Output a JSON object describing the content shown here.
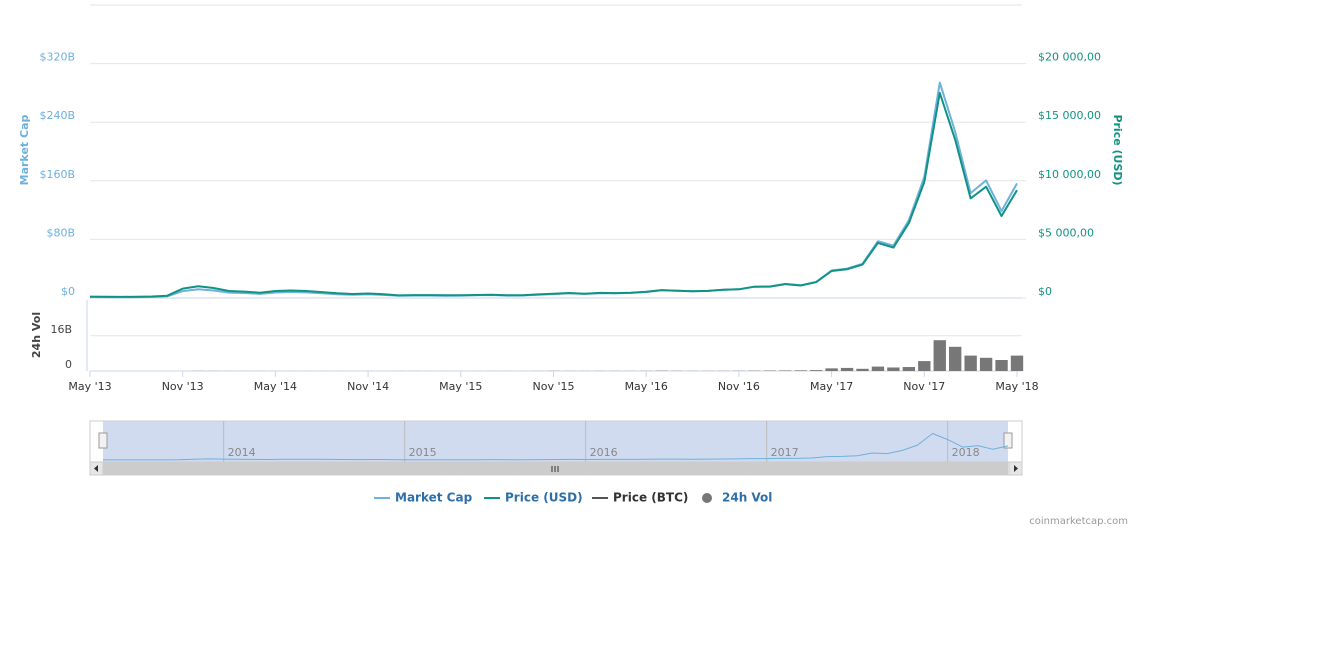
{
  "chart_data": {
    "type": "line",
    "y_title": "Market Cap",
    "y2_title": "Price (USD)",
    "vol_title": "24h Vol",
    "credit": "coinmarketcap.com",
    "x": [
      "2013-05",
      "2013-06",
      "2013-07",
      "2013-08",
      "2013-09",
      "2013-10",
      "2013-11",
      "2013-12",
      "2014-01",
      "2014-02",
      "2014-03",
      "2014-04",
      "2014-05",
      "2014-06",
      "2014-07",
      "2014-08",
      "2014-09",
      "2014-10",
      "2014-11",
      "2014-12",
      "2015-01",
      "2015-02",
      "2015-03",
      "2015-04",
      "2015-05",
      "2015-06",
      "2015-07",
      "2015-08",
      "2015-09",
      "2015-10",
      "2015-11",
      "2015-12",
      "2016-01",
      "2016-02",
      "2016-03",
      "2016-04",
      "2016-05",
      "2016-06",
      "2016-07",
      "2016-08",
      "2016-09",
      "2016-10",
      "2016-11",
      "2016-12",
      "2017-01",
      "2017-02",
      "2017-03",
      "2017-04",
      "2017-05",
      "2017-06",
      "2017-07",
      "2017-08",
      "2017-09",
      "2017-10",
      "2017-11",
      "2017-12",
      "2018-01",
      "2018-02",
      "2018-03",
      "2018-04",
      "2018-05"
    ],
    "xlim": [
      "2013-05",
      "2018-05"
    ],
    "xticks": [
      {
        "value": "2013-05",
        "label": "May '13"
      },
      {
        "value": "2013-11",
        "label": "Nov '13"
      },
      {
        "value": "2014-05",
        "label": "May '14"
      },
      {
        "value": "2014-11",
        "label": "Nov '14"
      },
      {
        "value": "2015-05",
        "label": "May '15"
      },
      {
        "value": "2015-11",
        "label": "Nov '15"
      },
      {
        "value": "2016-05",
        "label": "May '16"
      },
      {
        "value": "2016-11",
        "label": "Nov '16"
      },
      {
        "value": "2017-05",
        "label": "May '17"
      },
      {
        "value": "2017-11",
        "label": "Nov '17"
      },
      {
        "value": "2018-05",
        "label": "May '18"
      }
    ],
    "ylim": [
      0,
      400000000000
    ],
    "yticks": [
      {
        "value": 0,
        "label": "$0"
      },
      {
        "value": 80000000000,
        "label": "$80B"
      },
      {
        "value": 160000000000,
        "label": "$160B"
      },
      {
        "value": 240000000000,
        "label": "$240B"
      },
      {
        "value": 320000000000,
        "label": "$320B"
      }
    ],
    "y2lim": [
      0,
      25000
    ],
    "y2ticks": [
      {
        "value": 0,
        "label": "$0"
      },
      {
        "value": 5000,
        "label": "$5 000,00"
      },
      {
        "value": 10000,
        "label": "$10 000,00"
      },
      {
        "value": 15000,
        "label": "$15 000,00"
      },
      {
        "value": 20000,
        "label": "$20 000,00"
      }
    ],
    "vol_ylim": [
      0,
      30000000000
    ],
    "vol_yticks": [
      0,
      {
        "value": 16000000000,
        "label": "16B"
      }
    ],
    "grid": true,
    "legend": "bottom",
    "navigator_labels": [
      "2014",
      "2015",
      "2016",
      "2017",
      "2018"
    ],
    "series": [
      {
        "name": "Market Cap",
        "color": "#6db1dc",
        "axis": "y",
        "values": [
          1330000000,
          1230000000,
          1020000000,
          1250000000,
          1500000000,
          2340000000,
          9440000000,
          11900000000,
          10300000000,
          7320000000,
          6820000000,
          5630000000,
          7560000000,
          8130000000,
          7680000000,
          6450000000,
          5200000000,
          4450000000,
          5020000000,
          4260000000,
          2950000000,
          3380000000,
          3430000000,
          3170000000,
          3290000000,
          3670000000,
          4050000000,
          3310000000,
          3410000000,
          4530000000,
          5330000000,
          6410000000,
          5590000000,
          6610000000,
          6350000000,
          6930000000,
          8220000000,
          10450000000,
          9810000000,
          9090000000,
          9700000000,
          11130000000,
          11840000000,
          15460000000,
          15620000000,
          19280000000,
          17330000000,
          22000000000,
          37490000000,
          40180000000,
          46740000000,
          77550000000,
          71380000000,
          106240000000,
          165330000000,
          294000000000,
          226800000000,
          143200000000,
          160550000000,
          118650000000,
          156400000000
        ]
      },
      {
        "name": "Price (USD)",
        "color": "#119383",
        "axis": "y2",
        "values": [
          120,
          110,
          90,
          110,
          130,
          200,
          800,
          1000,
          850,
          600,
          550,
          450,
          600,
          640,
          600,
          500,
          400,
          340,
          380,
          320,
          220,
          250,
          250,
          230,
          235,
          260,
          285,
          230,
          235,
          310,
          360,
          430,
          370,
          435,
          415,
          450,
          530,
          670,
          625,
          575,
          610,
          700,
          740,
          960,
          970,
          1190,
          1070,
          1350,
          2300,
          2450,
          2850,
          4700,
          4300,
          6400,
          9900,
          17500,
          13500,
          8500,
          9500,
          7000,
          9200
        ]
      },
      {
        "name": "Price (BTC)",
        "color": "#555555"
      },
      {
        "name": "24h Vol",
        "color": "#777777",
        "axis": "vol",
        "values": [
          null,
          null,
          null,
          null,
          null,
          null,
          null,
          60000000,
          50000000,
          40000000,
          30000000,
          30000000,
          20000000,
          20000000,
          20000000,
          20000000,
          20000000,
          20000000,
          20000000,
          20000000,
          30000000,
          30000000,
          20000000,
          20000000,
          20000000,
          20000000,
          30000000,
          30000000,
          20000000,
          40000000,
          80000000,
          50000000,
          50000000,
          60000000,
          60000000,
          50000000,
          70000000,
          150000000,
          100000000,
          70000000,
          70000000,
          80000000,
          100000000,
          150000000,
          200000000,
          250000000,
          300000000,
          400000000,
          1200000000,
          1400000000,
          1000000000,
          2000000000,
          1600000000,
          1800000000,
          4500000000,
          14000000000,
          11000000000,
          7000000000,
          6000000000,
          5000000000,
          7000000000
        ]
      }
    ]
  }
}
